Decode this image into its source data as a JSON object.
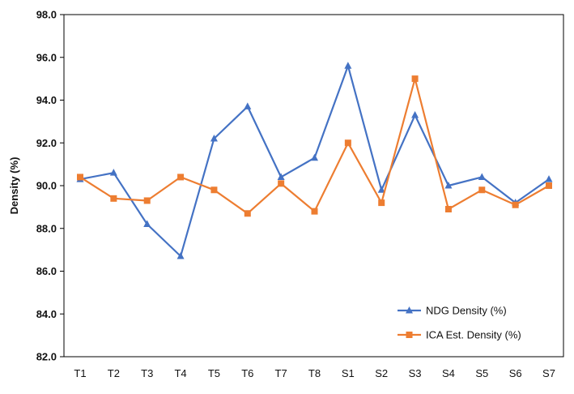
{
  "chart_data": {
    "type": "line",
    "categories": [
      "T1",
      "T2",
      "T3",
      "T4",
      "T5",
      "T6",
      "T7",
      "T8",
      "S1",
      "S2",
      "S3",
      "S4",
      "S5",
      "S6",
      "S7"
    ],
    "series": [
      {
        "name": "NDG Density (%)",
        "marker": "triangle",
        "color": "#4472C4",
        "values": [
          90.3,
          90.6,
          88.2,
          86.7,
          92.2,
          93.7,
          90.4,
          91.3,
          95.6,
          89.8,
          93.3,
          90.0,
          90.4,
          89.2,
          90.3
        ]
      },
      {
        "name": "ICA Est. Density (%)",
        "marker": "square",
        "color": "#ED7D31",
        "values": [
          90.4,
          89.4,
          89.3,
          90.4,
          89.8,
          88.7,
          90.1,
          88.8,
          92.0,
          89.2,
          95.0,
          88.9,
          89.8,
          89.1,
          90.0
        ]
      }
    ],
    "xlabel": "",
    "ylabel": "Density (%)",
    "ylim": [
      82.0,
      98.0
    ],
    "yticks": [
      "82.0",
      "84.0",
      "86.0",
      "88.0",
      "90.0",
      "92.0",
      "94.0",
      "96.0",
      "98.0"
    ],
    "grid": false,
    "legend_position": "bottom-right"
  }
}
